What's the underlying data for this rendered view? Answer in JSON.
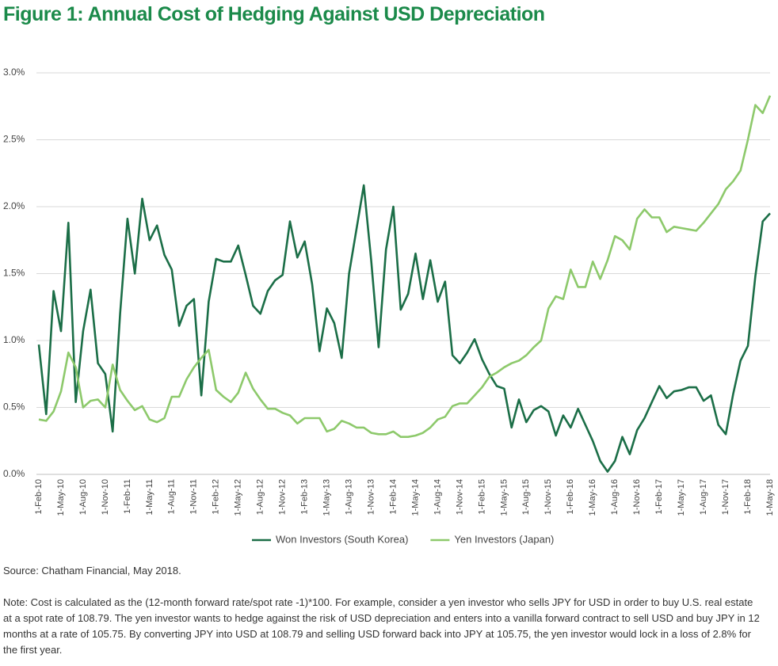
{
  "chart_data": {
    "type": "line",
    "title": "Figure 1: Annual Cost of Hedging Against USD Depreciation",
    "categories": [
      "1-Feb-10",
      null,
      null,
      "1-May-10",
      null,
      null,
      "1-Aug-10",
      null,
      null,
      "1-Nov-10",
      null,
      null,
      "1-Feb-11",
      null,
      null,
      "1-May-11",
      null,
      null,
      "1-Aug-11",
      null,
      null,
      "1-Nov-11",
      null,
      null,
      "1-Feb-12",
      null,
      null,
      "1-May-12",
      null,
      null,
      "1-Aug-12",
      null,
      null,
      "1-Nov-12",
      null,
      null,
      "1-Feb-13",
      null,
      null,
      "1-May-13",
      null,
      null,
      "1-Aug-13",
      null,
      null,
      "1-Nov-13",
      null,
      null,
      "1-Feb-14",
      null,
      null,
      "1-May-14",
      null,
      null,
      "1-Aug-14",
      null,
      null,
      "1-Nov-14",
      null,
      null,
      "1-Feb-15",
      null,
      null,
      "1-May-15",
      null,
      null,
      "1-Aug-15",
      null,
      null,
      "1-Nov-15",
      null,
      null,
      "1-Feb-16",
      null,
      null,
      "1-May-16",
      null,
      null,
      "1-Aug-16",
      null,
      null,
      "1-Nov-16",
      null,
      null,
      "1-Feb-17",
      null,
      null,
      "1-May-17",
      null,
      null,
      "1-Aug-17",
      null,
      null,
      "1-Nov-17",
      null,
      null,
      "1-Feb-18",
      null,
      null,
      "1-May-18"
    ],
    "series": [
      {
        "name": "Won Investors (South Korea)",
        "color": "#1b6e47",
        "values": [
          0.97,
          0.45,
          1.37,
          1.07,
          1.88,
          0.54,
          1.07,
          1.38,
          0.83,
          0.75,
          0.32,
          1.2,
          1.91,
          1.5,
          2.06,
          1.75,
          1.86,
          1.64,
          1.53,
          1.11,
          1.26,
          1.31,
          0.59,
          1.29,
          1.61,
          1.59,
          1.59,
          1.71,
          1.49,
          1.26,
          1.2,
          1.37,
          1.45,
          1.49,
          1.89,
          1.62,
          1.74,
          1.42,
          0.92,
          1.24,
          1.13,
          0.87,
          1.5,
          1.83,
          2.16,
          1.6,
          0.95,
          1.68,
          2.0,
          1.23,
          1.35,
          1.65,
          1.31,
          1.6,
          1.29,
          1.44,
          0.89,
          0.83,
          0.91,
          1.01,
          0.86,
          0.75,
          0.66,
          0.64,
          0.35,
          0.56,
          0.39,
          0.48,
          0.51,
          0.47,
          0.29,
          0.44,
          0.35,
          0.49,
          0.37,
          0.25,
          0.1,
          0.02,
          0.1,
          0.28,
          0.15,
          0.33,
          0.42,
          0.54,
          0.66,
          0.57,
          0.62,
          0.63,
          0.65,
          0.65,
          0.55,
          0.59,
          0.37,
          0.3,
          0.6,
          0.85,
          0.96,
          1.48,
          1.89,
          1.95
        ]
      },
      {
        "name": "Yen Investors (Japan)",
        "color": "#8dc96b",
        "values": [
          0.41,
          0.4,
          0.47,
          0.62,
          0.91,
          0.8,
          0.5,
          0.55,
          0.56,
          0.5,
          0.82,
          0.63,
          0.55,
          0.48,
          0.51,
          0.41,
          0.39,
          0.42,
          0.58,
          0.58,
          0.71,
          0.8,
          0.87,
          0.93,
          0.63,
          0.58,
          0.54,
          0.61,
          0.76,
          0.64,
          0.56,
          0.49,
          0.49,
          0.46,
          0.44,
          0.38,
          0.42,
          0.42,
          0.42,
          0.32,
          0.34,
          0.4,
          0.38,
          0.35,
          0.35,
          0.31,
          0.3,
          0.3,
          0.32,
          0.28,
          0.28,
          0.29,
          0.31,
          0.35,
          0.41,
          0.43,
          0.51,
          0.53,
          0.53,
          0.59,
          0.65,
          0.73,
          0.76,
          0.8,
          0.83,
          0.85,
          0.89,
          0.95,
          1.0,
          1.24,
          1.33,
          1.31,
          1.53,
          1.4,
          1.4,
          1.59,
          1.46,
          1.6,
          1.78,
          1.75,
          1.68,
          1.91,
          1.98,
          1.92,
          1.92,
          1.81,
          1.85,
          1.84,
          1.83,
          1.82,
          1.88,
          1.95,
          2.02,
          2.13,
          2.19,
          2.27,
          2.5,
          2.76,
          2.7,
          2.83
        ]
      }
    ],
    "ylim": [
      0,
      3
    ],
    "yticks": [
      {
        "value": 0,
        "label": "0.0%"
      },
      {
        "value": 0.5,
        "label": "0.5%"
      },
      {
        "value": 1,
        "label": "1.0%"
      },
      {
        "value": 1.5,
        "label": "1.5%"
      },
      {
        "value": 2,
        "label": "2.0%"
      },
      {
        "value": 2.5,
        "label": "2.5%"
      },
      {
        "value": 3,
        "label": "3.0%"
      }
    ],
    "grid": true,
    "legend": "bottom",
    "source": "Source: Chatham Financial, May 2018.",
    "note": "Note: Cost is calculated as the (12-month forward rate/spot rate -1)*100. For example, consider a yen investor who sells JPY for USD in order to buy U.S. real estate at a spot rate of 108.79. The yen investor wants to hedge against the risk of USD depreciation and enters into a vanilla forward contract to sell USD and buy JPY in 12 months at a rate of 105.75. By converting JPY into USD at 108.79 and selling USD forward back into JPY at 105.75, the yen investor would lock in a loss of 2.8% for the first year."
  }
}
